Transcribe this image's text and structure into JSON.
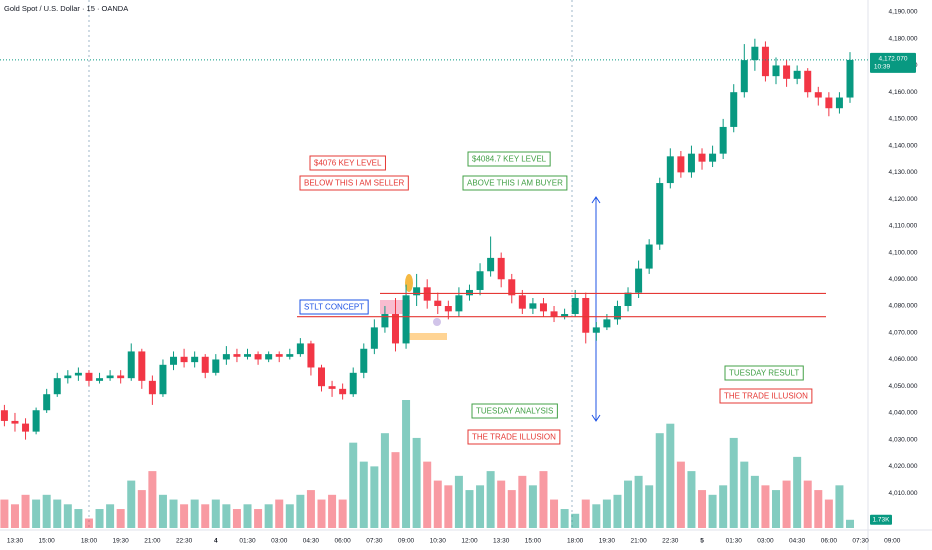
{
  "chart_data": {
    "type": "candlestick",
    "title": "Gold Spot / U.S. Dollar · 15 · OANDA",
    "categories": [
      null,
      "13:30",
      null,
      null,
      "15:00",
      null,
      null,
      null,
      "18:00",
      null,
      null,
      "19:30",
      null,
      null,
      "21:00",
      null,
      null,
      "22:30",
      null,
      null,
      "4",
      null,
      null,
      "01:30",
      null,
      null,
      "03:00",
      null,
      null,
      "04:30",
      null,
      null,
      "06:00",
      null,
      null,
      "07:30",
      null,
      null,
      "09:00",
      null,
      null,
      "10:30",
      null,
      null,
      "12:00",
      null,
      null,
      "13:30",
      null,
      null,
      "15:00",
      null,
      null,
      null,
      "18:00",
      null,
      null,
      "19:30",
      null,
      null,
      "21:00",
      null,
      null,
      "22:30",
      null,
      null,
      "5",
      null,
      null,
      "01:30",
      null,
      null,
      "03:00",
      null,
      null,
      "04:30",
      null,
      null,
      "06:00",
      null,
      null,
      "07:30",
      null,
      null,
      "09:00"
    ],
    "open": [
      4041,
      4037,
      4036,
      4033,
      4041,
      4047,
      4053,
      4054,
      4055,
      4052,
      4053,
      4054,
      4053,
      4063,
      4052,
      4047,
      4058,
      4061,
      4059,
      4061,
      4055,
      4060,
      4062,
      4061,
      4062,
      4060,
      4062,
      4061,
      4062,
      4066,
      4057,
      4050,
      4049,
      4047,
      4055,
      4064,
      4072,
      4077,
      4066,
      4084,
      4087,
      4082,
      4080,
      4078,
      4084,
      4086,
      4093,
      4098,
      4090,
      4084,
      4079,
      4081,
      4078,
      4076,
      4077,
      4083,
      4070,
      4072,
      4075,
      4080,
      4085,
      4094,
      4103,
      4126,
      4136,
      4130,
      4137,
      4134,
      4137,
      4147,
      4160,
      4172,
      4177,
      4166,
      4170,
      4165,
      4168,
      4160,
      4158,
      4154,
      4158,
      null,
      null,
      null,
      null
    ],
    "high": [
      4043,
      4040,
      4038,
      4042,
      4049,
      4055,
      4056,
      4057,
      4056,
      4055,
      4056,
      4056,
      4066,
      4064,
      4054,
      4060,
      4063,
      4064,
      4063,
      4062,
      4062,
      4065,
      4064,
      4064,
      4063,
      4063,
      4063,
      4064,
      4068,
      4067,
      4058,
      4052,
      4051,
      4057,
      4066,
      4075,
      4080,
      4083,
      4088,
      4092,
      4090,
      4085,
      4082,
      4087,
      4088,
      4096,
      4106,
      4100,
      4092,
      4086,
      4083,
      4083,
      4080,
      4079,
      4086,
      4085,
      4074,
      4077,
      4082,
      4087,
      4097,
      4105,
      4128,
      4139,
      4138,
      4140,
      4139,
      4140,
      4150,
      4163,
      4178,
      4180,
      4179,
      4173,
      4172,
      4170,
      4169,
      4162,
      4160,
      4160,
      4175,
      null,
      null,
      null,
      null
    ],
    "low": [
      4035,
      4033,
      4030,
      4032,
      4040,
      4046,
      4051,
      4052,
      4050,
      4051,
      4052,
      4051,
      4052,
      4049,
      4043,
      4046,
      4056,
      4057,
      4057,
      4053,
      4054,
      4058,
      4059,
      4060,
      4058,
      4059,
      4059,
      4060,
      4061,
      4054,
      4048,
      4046,
      4045,
      4046,
      4053,
      4062,
      4070,
      4063,
      4064,
      4080,
      4079,
      4077,
      4075,
      4076,
      4082,
      4084,
      4091,
      4087,
      4081,
      4077,
      4077,
      4076,
      4074,
      4075,
      4076,
      4066,
      4067,
      4071,
      4073,
      4078,
      4083,
      4092,
      4101,
      4124,
      4128,
      4128,
      4131,
      4132,
      4135,
      4145,
      4158,
      4168,
      4164,
      4163,
      4162,
      4163,
      4158,
      4155,
      4151,
      4152,
      4156,
      null,
      null,
      null,
      null
    ],
    "close": [
      4037,
      4036,
      4033,
      4041,
      4047,
      4053,
      4054,
      4055,
      4052,
      4053,
      4054,
      4053,
      4063,
      4052,
      4047,
      4058,
      4061,
      4059,
      4061,
      4055,
      4060,
      4062,
      4061,
      4062,
      4060,
      4062,
      4061,
      4062,
      4066,
      4057,
      4050,
      4049,
      4047,
      4055,
      4064,
      4072,
      4077,
      4066,
      4084,
      4087,
      4082,
      4080,
      4078,
      4084,
      4086,
      4093,
      4098,
      4090,
      4084,
      4079,
      4081,
      4078,
      4076,
      4077,
      4083,
      4070,
      4072,
      4075,
      4080,
      4085,
      4094,
      4103,
      4126,
      4136,
      4130,
      4137,
      4134,
      4137,
      4147,
      4160,
      4172,
      4177,
      4166,
      4170,
      4165,
      4168,
      4160,
      4158,
      4154,
      4158,
      4172.07,
      null,
      null,
      null,
      null
    ],
    "volume": [
      6,
      5,
      7,
      6,
      7,
      6,
      5,
      4,
      2,
      4,
      5,
      4,
      10,
      8,
      12,
      7,
      6,
      5,
      6,
      5,
      6,
      5,
      4,
      5,
      4,
      5,
      6,
      5,
      7,
      8,
      6,
      7,
      6,
      18,
      14,
      13,
      20,
      16,
      27,
      19,
      14,
      10,
      9,
      11,
      8,
      9,
      12,
      10,
      8,
      11,
      9,
      12,
      6,
      4,
      3,
      6,
      5,
      6,
      7,
      10,
      11,
      9,
      20,
      22,
      14,
      12,
      8,
      7,
      9,
      19,
      14,
      11,
      9,
      8,
      10,
      15,
      10,
      8,
      6,
      9,
      1.73,
      null,
      null,
      null,
      null
    ],
    "volume_lim": [
      0,
      27
    ],
    "volume_label": {
      "value": 1.73,
      "label": "1.73K"
    },
    "up_color": "#089981",
    "down_color": "#f23645",
    "ylim": [
      3988.71,
      4194.49
    ],
    "yticks": [
      {
        "value": 4010,
        "label": "4,010.000"
      },
      {
        "value": 4020,
        "label": "4,020.000"
      },
      {
        "value": 4030,
        "label": "4,030.000"
      },
      {
        "value": 4040,
        "label": "4,040.000"
      },
      {
        "value": 4050,
        "label": "4,050.000"
      },
      {
        "value": 4060,
        "label": "4,060.000"
      },
      {
        "value": 4070,
        "label": "4,070.000"
      },
      {
        "value": 4080,
        "label": "4,080.000"
      },
      {
        "value": 4090,
        "label": "4,090.000"
      },
      {
        "value": 4100,
        "label": "4,100.000"
      },
      {
        "value": 4110,
        "label": "4,110.000"
      },
      {
        "value": 4120,
        "label": "4,120.000"
      },
      {
        "value": 4130,
        "label": "4,130.000"
      },
      {
        "value": 4140,
        "label": "4,140.000"
      },
      {
        "value": 4150,
        "label": "4,150.000"
      },
      {
        "value": 4160,
        "label": "4,160.000"
      },
      {
        "value": 4170,
        "label": "4,170.000"
      },
      {
        "value": 4180,
        "label": "4,180.000"
      },
      {
        "value": 4190,
        "label": "4,190.000"
      }
    ],
    "last_price": {
      "value": 4172.07,
      "label": "4,172.070"
    },
    "countdown": "10:39",
    "levels": [
      {
        "value": 4084.7,
        "color": "#e53935"
      },
      {
        "value": 4076,
        "color": "#e53935"
      }
    ],
    "annotations": [
      {
        "text": "$4076 KEY LEVEL",
        "color": "#e53935"
      },
      {
        "text": "BELOW THIS I AM SELLER",
        "color": "#e53935"
      },
      {
        "text": "$4084.7 KEY LEVEL",
        "color": "#43a047"
      },
      {
        "text": "ABOVE THIS I AM BUYER",
        "color": "#43a047"
      },
      {
        "text": "STLT CONCEPT",
        "color": "#1e53e5"
      },
      {
        "text": "TUESDAY ANALYSIS",
        "color": "#43a047"
      },
      {
        "text": "THE TRADE ILLUSION",
        "color": "#e53935"
      },
      {
        "text": "TUESDAY RESULT",
        "color": "#43a047"
      },
      {
        "text": "THE TRADE ILLUSION",
        "color": "#e53935"
      }
    ]
  }
}
